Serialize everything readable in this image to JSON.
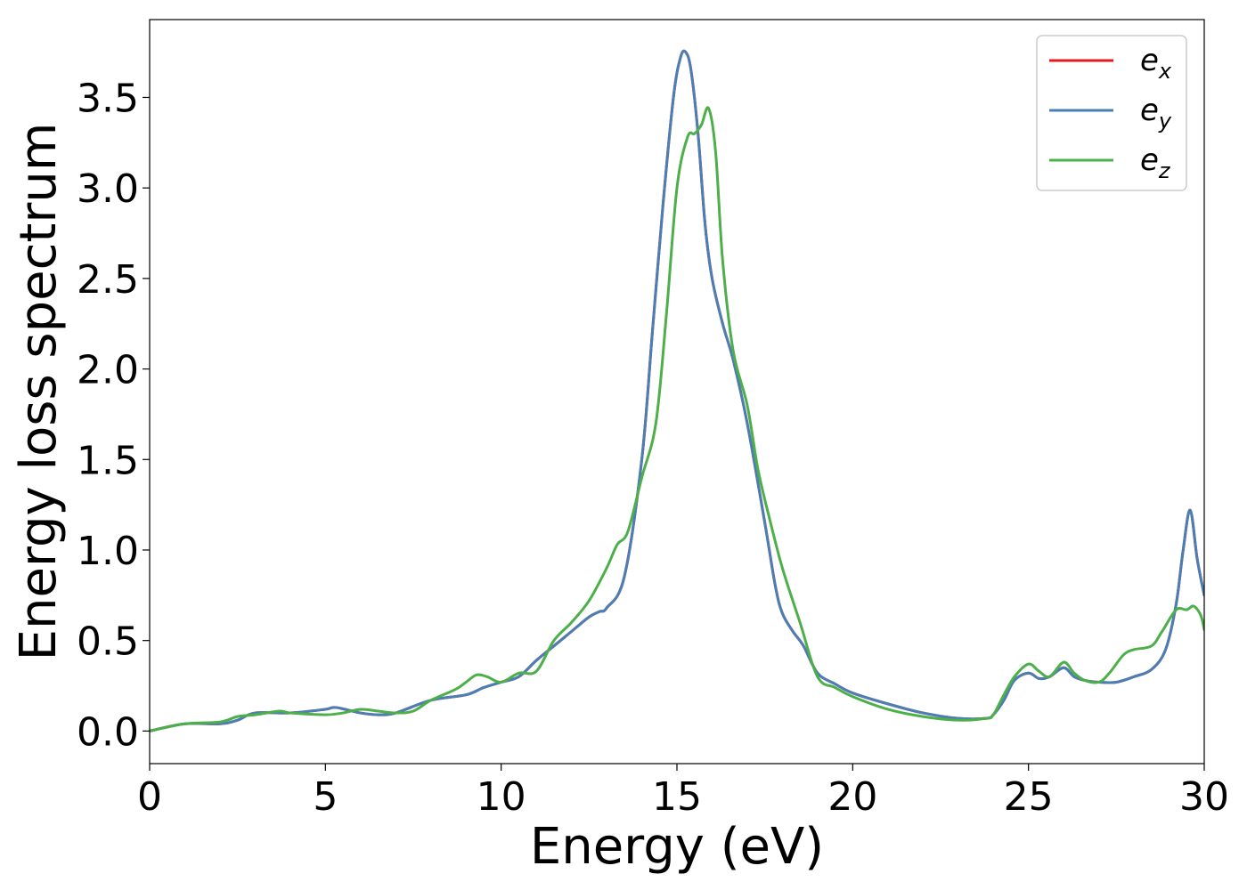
{
  "chart_data": {
    "type": "line",
    "xlabel": "Energy (eV)",
    "ylabel": "Energy loss spectrum",
    "xlim": [
      0,
      30
    ],
    "ylim": [
      -0.18,
      3.93
    ],
    "xticks": [
      0,
      5,
      10,
      15,
      20,
      25,
      30
    ],
    "xtick_labels": [
      "0",
      "5",
      "10",
      "15",
      "20",
      "25",
      "30"
    ],
    "yticks": [
      0.0,
      0.5,
      1.0,
      1.5,
      2.0,
      2.5,
      3.0,
      3.5
    ],
    "ytick_labels": [
      "0.0",
      "0.5",
      "1.0",
      "1.5",
      "2.0",
      "2.5",
      "3.0",
      "3.5"
    ],
    "grid": false,
    "legend_position": "top-right",
    "series": [
      {
        "name": "e_x",
        "legend_base": "e",
        "legend_sub": "x",
        "color": "#e41a1c",
        "x": [
          0,
          1,
          2,
          2.5,
          3,
          4,
          5,
          5.3,
          6,
          6.5,
          7,
          8,
          9,
          9.5,
          10,
          10.5,
          11,
          11.5,
          12,
          12.5,
          12.8,
          13,
          13.5,
          14,
          14.3,
          14.6,
          14.9,
          15.1,
          15.25,
          15.4,
          15.6,
          15.8,
          16,
          16.3,
          16.6,
          17,
          17.5,
          17.8,
          18,
          18.3,
          18.6,
          19,
          19.5,
          20,
          21,
          22,
          23,
          23.8,
          24,
          24.3,
          24.6,
          25,
          25.3,
          25.6,
          26,
          26.3,
          26.6,
          27,
          27.5,
          28,
          28.5,
          28.9,
          29.2,
          29.4,
          29.6,
          29.8,
          30
        ],
        "y": [
          0.0,
          0.04,
          0.04,
          0.06,
          0.1,
          0.1,
          0.12,
          0.13,
          0.1,
          0.09,
          0.1,
          0.17,
          0.2,
          0.24,
          0.27,
          0.3,
          0.39,
          0.47,
          0.55,
          0.63,
          0.66,
          0.68,
          0.85,
          1.5,
          2.2,
          2.9,
          3.5,
          3.72,
          3.75,
          3.65,
          3.3,
          2.8,
          2.5,
          2.25,
          2.05,
          1.7,
          1.15,
          0.8,
          0.65,
          0.55,
          0.47,
          0.32,
          0.26,
          0.21,
          0.15,
          0.1,
          0.07,
          0.07,
          0.09,
          0.17,
          0.28,
          0.32,
          0.29,
          0.3,
          0.35,
          0.3,
          0.28,
          0.27,
          0.27,
          0.3,
          0.34,
          0.45,
          0.7,
          1.0,
          1.22,
          0.95,
          0.75
        ]
      },
      {
        "name": "e_y",
        "legend_base": "e",
        "legend_sub": "y",
        "color": "#4a7fb6",
        "x": [
          0,
          1,
          2,
          2.5,
          3,
          4,
          5,
          5.3,
          6,
          6.5,
          7,
          8,
          9,
          9.5,
          10,
          10.5,
          11,
          11.5,
          12,
          12.5,
          12.8,
          13,
          13.5,
          14,
          14.3,
          14.6,
          14.9,
          15.1,
          15.25,
          15.4,
          15.6,
          15.8,
          16,
          16.3,
          16.6,
          17,
          17.5,
          17.8,
          18,
          18.3,
          18.6,
          19,
          19.5,
          20,
          21,
          22,
          23,
          23.8,
          24,
          24.3,
          24.6,
          25,
          25.3,
          25.6,
          26,
          26.3,
          26.6,
          27,
          27.5,
          28,
          28.5,
          28.9,
          29.2,
          29.4,
          29.6,
          29.8,
          30
        ],
        "y": [
          0.0,
          0.04,
          0.04,
          0.06,
          0.1,
          0.1,
          0.12,
          0.13,
          0.1,
          0.09,
          0.1,
          0.17,
          0.2,
          0.24,
          0.27,
          0.3,
          0.39,
          0.47,
          0.55,
          0.63,
          0.66,
          0.68,
          0.85,
          1.5,
          2.2,
          2.9,
          3.5,
          3.72,
          3.75,
          3.65,
          3.3,
          2.8,
          2.5,
          2.25,
          2.05,
          1.7,
          1.15,
          0.8,
          0.65,
          0.55,
          0.47,
          0.32,
          0.26,
          0.21,
          0.15,
          0.1,
          0.07,
          0.07,
          0.09,
          0.17,
          0.28,
          0.32,
          0.29,
          0.3,
          0.35,
          0.3,
          0.28,
          0.27,
          0.27,
          0.3,
          0.34,
          0.45,
          0.7,
          1.0,
          1.22,
          0.95,
          0.75
        ]
      },
      {
        "name": "e_z",
        "legend_base": "e",
        "legend_sub": "z",
        "color": "#4daf4a",
        "x": [
          0,
          1,
          2,
          2.5,
          3,
          3.7,
          4,
          5,
          5.5,
          6,
          6.5,
          7,
          7.5,
          8,
          8.7,
          9,
          9.3,
          9.6,
          10,
          10.5,
          11,
          11.5,
          12,
          12.5,
          13,
          13.3,
          13.6,
          14,
          14.4,
          14.7,
          15,
          15.3,
          15.5,
          15.7,
          15.9,
          16.1,
          16.3,
          16.6,
          17,
          17.3,
          17.6,
          18,
          18.5,
          19,
          19.5,
          20,
          21,
          22,
          23,
          23.8,
          24,
          24.3,
          24.6,
          25,
          25.3,
          25.6,
          26,
          26.3,
          26.6,
          27,
          27.3,
          27.7,
          28,
          28.5,
          28.8,
          29.2,
          29.5,
          29.7,
          29.9,
          30
        ],
        "y": [
          0.0,
          0.04,
          0.05,
          0.08,
          0.09,
          0.11,
          0.1,
          0.09,
          0.1,
          0.12,
          0.11,
          0.1,
          0.11,
          0.17,
          0.23,
          0.27,
          0.31,
          0.3,
          0.27,
          0.32,
          0.33,
          0.5,
          0.6,
          0.72,
          0.9,
          1.03,
          1.1,
          1.4,
          1.7,
          2.3,
          3.0,
          3.28,
          3.3,
          3.35,
          3.44,
          3.2,
          2.6,
          2.1,
          1.8,
          1.45,
          1.2,
          0.9,
          0.6,
          0.3,
          0.24,
          0.19,
          0.12,
          0.08,
          0.06,
          0.07,
          0.09,
          0.2,
          0.3,
          0.37,
          0.33,
          0.3,
          0.38,
          0.32,
          0.28,
          0.27,
          0.32,
          0.42,
          0.45,
          0.47,
          0.55,
          0.67,
          0.67,
          0.69,
          0.64,
          0.56
        ]
      }
    ]
  }
}
